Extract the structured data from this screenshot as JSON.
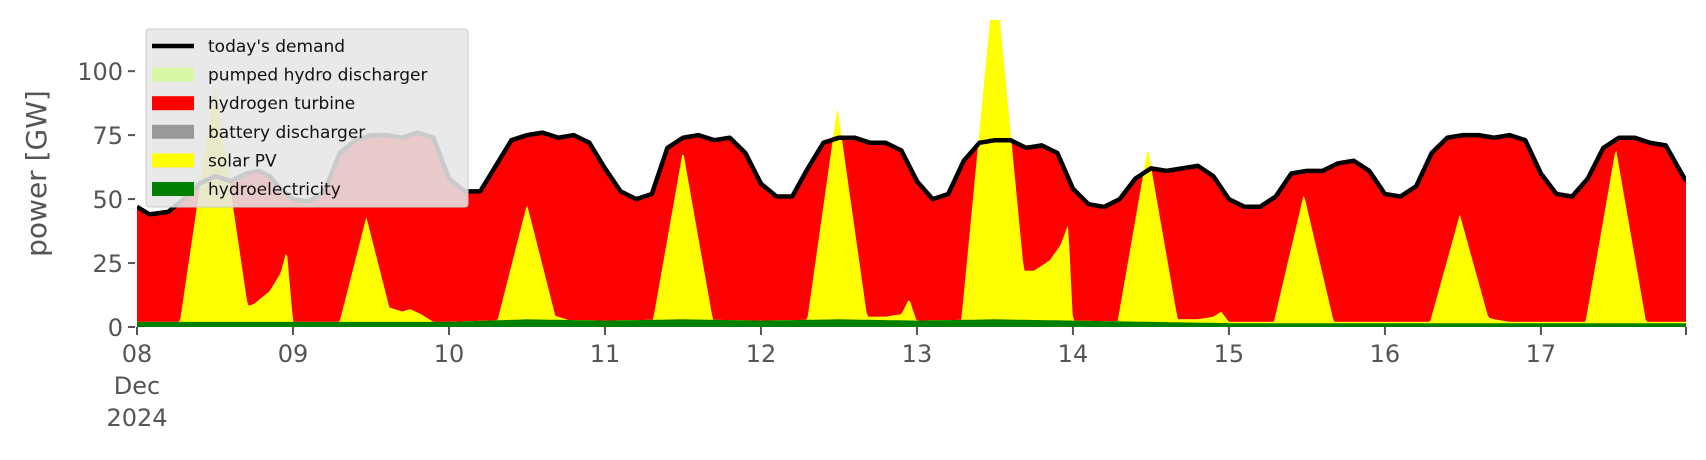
{
  "chart_data": {
    "type": "area",
    "ylabel": "power [GW]",
    "ylim": [
      0,
      120
    ],
    "xlim": [
      0,
      9.93
    ],
    "yticks": [
      0,
      25,
      50,
      75,
      100
    ],
    "xticks": [
      {
        "x": 0,
        "lines": [
          "08",
          "Dec",
          "2024"
        ]
      },
      {
        "x": 1,
        "lines": [
          "09"
        ]
      },
      {
        "x": 2,
        "lines": [
          "10"
        ]
      },
      {
        "x": 3,
        "lines": [
          "11"
        ]
      },
      {
        "x": 4,
        "lines": [
          "12"
        ]
      },
      {
        "x": 5,
        "lines": [
          "13"
        ]
      },
      {
        "x": 6,
        "lines": [
          "14"
        ]
      },
      {
        "x": 7,
        "lines": [
          "15"
        ]
      },
      {
        "x": 8,
        "lines": [
          "16"
        ]
      },
      {
        "x": 9,
        "lines": [
          "17"
        ]
      }
    ],
    "legend": {
      "placement": "top-left",
      "entries": [
        {
          "label": "today's demand",
          "color": "#000000",
          "kind": "line"
        },
        {
          "label": "pumped hydro discharger",
          "color": "#d8f7a6",
          "kind": "patch"
        },
        {
          "label": "hydrogen turbine",
          "color": "#ff0000",
          "kind": "patch"
        },
        {
          "label": "battery discharger",
          "color": "#999999",
          "kind": "patch"
        },
        {
          "label": "solar PV",
          "color": "#ffff00",
          "kind": "patch"
        },
        {
          "label": "hydroelectricity",
          "color": "#008000",
          "kind": "patch"
        }
      ]
    },
    "demand": [
      [
        0.0,
        47
      ],
      [
        0.08,
        44
      ],
      [
        0.2,
        45
      ],
      [
        0.3,
        50
      ],
      [
        0.4,
        56
      ],
      [
        0.5,
        59
      ],
      [
        0.6,
        57
      ],
      [
        0.7,
        60
      ],
      [
        0.78,
        61
      ],
      [
        0.85,
        59
      ],
      [
        0.92,
        54
      ],
      [
        1.0,
        50
      ],
      [
        1.1,
        49
      ],
      [
        1.2,
        53
      ],
      [
        1.3,
        68
      ],
      [
        1.4,
        73
      ],
      [
        1.5,
        75
      ],
      [
        1.6,
        75
      ],
      [
        1.7,
        74
      ],
      [
        1.8,
        76
      ],
      [
        1.9,
        74
      ],
      [
        2.0,
        58
      ],
      [
        2.1,
        53
      ],
      [
        2.2,
        53
      ],
      [
        2.3,
        63
      ],
      [
        2.4,
        73
      ],
      [
        2.5,
        75
      ],
      [
        2.6,
        76
      ],
      [
        2.7,
        74
      ],
      [
        2.8,
        75
      ],
      [
        2.9,
        72
      ],
      [
        3.0,
        62
      ],
      [
        3.1,
        53
      ],
      [
        3.2,
        50
      ],
      [
        3.3,
        52
      ],
      [
        3.4,
        70
      ],
      [
        3.5,
        74
      ],
      [
        3.6,
        75
      ],
      [
        3.7,
        73
      ],
      [
        3.8,
        74
      ],
      [
        3.9,
        68
      ],
      [
        4.0,
        56
      ],
      [
        4.1,
        51
      ],
      [
        4.2,
        51
      ],
      [
        4.3,
        62
      ],
      [
        4.4,
        72
      ],
      [
        4.5,
        74
      ],
      [
        4.6,
        74
      ],
      [
        4.7,
        72
      ],
      [
        4.8,
        72
      ],
      [
        4.9,
        69
      ],
      [
        5.0,
        57
      ],
      [
        5.1,
        50
      ],
      [
        5.2,
        52
      ],
      [
        5.3,
        65
      ],
      [
        5.4,
        72
      ],
      [
        5.5,
        73
      ],
      [
        5.6,
        73
      ],
      [
        5.7,
        70
      ],
      [
        5.8,
        71
      ],
      [
        5.9,
        68
      ],
      [
        6.0,
        54
      ],
      [
        6.1,
        48
      ],
      [
        6.2,
        47
      ],
      [
        6.3,
        50
      ],
      [
        6.4,
        58
      ],
      [
        6.5,
        62
      ],
      [
        6.6,
        61
      ],
      [
        6.7,
        62
      ],
      [
        6.8,
        63
      ],
      [
        6.9,
        59
      ],
      [
        7.0,
        50
      ],
      [
        7.1,
        47
      ],
      [
        7.2,
        47
      ],
      [
        7.3,
        51
      ],
      [
        7.4,
        60
      ],
      [
        7.5,
        61
      ],
      [
        7.6,
        61
      ],
      [
        7.7,
        64
      ],
      [
        7.8,
        65
      ],
      [
        7.9,
        61
      ],
      [
        8.0,
        52
      ],
      [
        8.1,
        51
      ],
      [
        8.2,
        55
      ],
      [
        8.3,
        68
      ],
      [
        8.4,
        74
      ],
      [
        8.5,
        75
      ],
      [
        8.6,
        75
      ],
      [
        8.7,
        74
      ],
      [
        8.8,
        75
      ],
      [
        8.9,
        73
      ],
      [
        9.0,
        60
      ],
      [
        9.1,
        52
      ],
      [
        9.2,
        51
      ],
      [
        9.3,
        58
      ],
      [
        9.4,
        70
      ],
      [
        9.5,
        74
      ],
      [
        9.6,
        74
      ],
      [
        9.7,
        72
      ],
      [
        9.8,
        71
      ],
      [
        9.93,
        57
      ]
    ],
    "hydrogen_top": [
      [
        0.0,
        47
      ],
      [
        0.08,
        44
      ],
      [
        0.2,
        45
      ],
      [
        0.3,
        50
      ],
      [
        0.4,
        56
      ],
      [
        0.5,
        59
      ],
      [
        0.6,
        57
      ],
      [
        0.7,
        60
      ],
      [
        0.78,
        61
      ],
      [
        0.85,
        59
      ],
      [
        0.92,
        54
      ],
      [
        1.0,
        50
      ],
      [
        1.1,
        49
      ],
      [
        1.2,
        53
      ],
      [
        1.3,
        68
      ],
      [
        1.4,
        73
      ],
      [
        1.5,
        75
      ],
      [
        1.6,
        75
      ],
      [
        1.7,
        74
      ],
      [
        1.8,
        76
      ],
      [
        1.9,
        74
      ],
      [
        2.0,
        58
      ],
      [
        2.1,
        53
      ],
      [
        2.2,
        53
      ],
      [
        2.3,
        63
      ],
      [
        2.4,
        73
      ],
      [
        2.5,
        75
      ],
      [
        2.6,
        76
      ],
      [
        2.7,
        74
      ],
      [
        2.8,
        75
      ],
      [
        2.9,
        72
      ],
      [
        3.0,
        62
      ],
      [
        3.1,
        53
      ],
      [
        3.2,
        50
      ],
      [
        3.3,
        52
      ],
      [
        3.4,
        70
      ],
      [
        3.5,
        74
      ],
      [
        3.6,
        75
      ],
      [
        3.7,
        73
      ],
      [
        3.8,
        74
      ],
      [
        3.9,
        68
      ],
      [
        4.0,
        56
      ],
      [
        4.1,
        51
      ],
      [
        4.2,
        51
      ],
      [
        4.3,
        62
      ],
      [
        4.4,
        72
      ],
      [
        4.5,
        74
      ],
      [
        4.6,
        74
      ],
      [
        4.7,
        72
      ],
      [
        4.8,
        72
      ],
      [
        4.9,
        69
      ],
      [
        5.0,
        57
      ],
      [
        5.1,
        50
      ],
      [
        5.2,
        52
      ],
      [
        5.3,
        65
      ],
      [
        5.4,
        72
      ],
      [
        5.5,
        73
      ],
      [
        5.6,
        73
      ],
      [
        5.7,
        70
      ],
      [
        5.8,
        71
      ],
      [
        5.9,
        68
      ],
      [
        6.0,
        54
      ],
      [
        6.1,
        48
      ],
      [
        6.2,
        47
      ],
      [
        6.3,
        50
      ],
      [
        6.4,
        58
      ],
      [
        6.5,
        62
      ],
      [
        6.6,
        61
      ],
      [
        6.7,
        62
      ],
      [
        6.8,
        63
      ],
      [
        6.9,
        59
      ],
      [
        7.0,
        50
      ],
      [
        7.1,
        47
      ],
      [
        7.2,
        47
      ],
      [
        7.3,
        51
      ],
      [
        7.4,
        60
      ],
      [
        7.5,
        61
      ],
      [
        7.6,
        61
      ],
      [
        7.7,
        64
      ],
      [
        7.8,
        65
      ],
      [
        7.9,
        61
      ],
      [
        8.0,
        52
      ],
      [
        8.1,
        51
      ],
      [
        8.2,
        55
      ],
      [
        8.3,
        68
      ],
      [
        8.4,
        74
      ],
      [
        8.5,
        75
      ],
      [
        8.6,
        75
      ],
      [
        8.7,
        74
      ],
      [
        8.8,
        75
      ],
      [
        8.9,
        73
      ],
      [
        9.0,
        60
      ],
      [
        9.1,
        52
      ],
      [
        9.2,
        51
      ],
      [
        9.3,
        58
      ],
      [
        9.4,
        70
      ],
      [
        9.5,
        74
      ],
      [
        9.6,
        74
      ],
      [
        9.7,
        72
      ],
      [
        9.8,
        71
      ],
      [
        9.93,
        57
      ]
    ],
    "battery_top": [
      [
        0.0,
        2
      ],
      [
        0.6,
        2
      ],
      [
        0.65,
        7
      ],
      [
        0.75,
        9
      ],
      [
        0.85,
        14
      ],
      [
        0.92,
        21
      ],
      [
        0.96,
        30
      ],
      [
        1.0,
        2
      ],
      [
        1.55,
        2
      ],
      [
        1.6,
        8
      ],
      [
        1.7,
        6
      ],
      [
        1.75,
        7
      ],
      [
        1.82,
        5
      ],
      [
        1.9,
        2
      ],
      [
        2.55,
        2
      ],
      [
        2.6,
        5
      ],
      [
        2.7,
        4
      ],
      [
        2.8,
        2
      ],
      [
        4.55,
        2
      ],
      [
        4.6,
        5
      ],
      [
        4.7,
        4
      ],
      [
        4.8,
        4
      ],
      [
        4.9,
        5
      ],
      [
        4.95,
        11
      ],
      [
        5.0,
        2
      ],
      [
        5.6,
        2
      ],
      [
        5.65,
        22
      ],
      [
        5.75,
        22
      ],
      [
        5.85,
        26
      ],
      [
        5.92,
        32
      ],
      [
        5.97,
        40
      ],
      [
        6.0,
        2
      ],
      [
        6.5,
        2
      ],
      [
        6.6,
        3
      ],
      [
        6.8,
        3
      ],
      [
        6.9,
        4
      ],
      [
        6.95,
        6
      ],
      [
        7.0,
        2
      ],
      [
        8.55,
        2
      ],
      [
        8.6,
        5
      ],
      [
        8.7,
        3
      ],
      [
        8.8,
        2
      ],
      [
        9.93,
        2
      ]
    ],
    "solar_peaks": [
      {
        "x": 0.5,
        "v": 95,
        "w": 0.23
      },
      {
        "x": 1.47,
        "v": 43,
        "w": 0.18
      },
      {
        "x": 2.5,
        "v": 48,
        "w": 0.2
      },
      {
        "x": 3.5,
        "v": 69,
        "w": 0.2
      },
      {
        "x": 4.49,
        "v": 86,
        "w": 0.2
      },
      {
        "x": 5.5,
        "v": 140,
        "w": 0.22
      },
      {
        "x": 6.48,
        "v": 70,
        "w": 0.2
      },
      {
        "x": 7.48,
        "v": 52,
        "w": 0.2
      },
      {
        "x": 8.48,
        "v": 44,
        "w": 0.2
      },
      {
        "x": 9.48,
        "v": 70,
        "w": 0.2
      }
    ],
    "hydro_top": [
      [
        0.0,
        2
      ],
      [
        1.5,
        2
      ],
      [
        2.0,
        2
      ],
      [
        2.5,
        3
      ],
      [
        3.0,
        2.5
      ],
      [
        3.5,
        3
      ],
      [
        4.0,
        2.5
      ],
      [
        4.5,
        3
      ],
      [
        5.0,
        2.5
      ],
      [
        5.5,
        3
      ],
      [
        6.0,
        2.5
      ],
      [
        6.5,
        2
      ],
      [
        7.0,
        1.5
      ],
      [
        8.0,
        1.5
      ],
      [
        9.0,
        1.5
      ],
      [
        9.93,
        1.5
      ]
    ]
  }
}
